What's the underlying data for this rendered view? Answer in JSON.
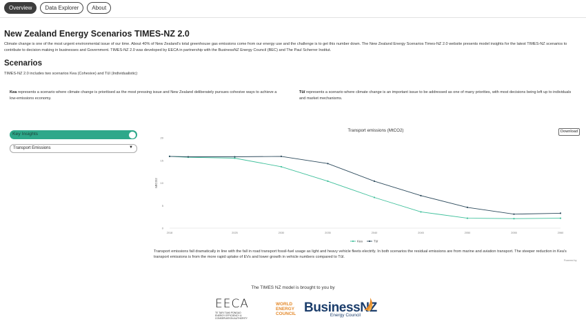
{
  "nav": {
    "tabs": [
      {
        "label": "Overview",
        "active": true
      },
      {
        "label": "Data Explorer",
        "active": false
      },
      {
        "label": "About",
        "active": false
      }
    ]
  },
  "header": {
    "title": "New Zealand Energy Scenarios TIMES-NZ 2.0",
    "intro": "Climate change is one of the most urgent environmental issue of our time. About 40% of New Zealand's total greenhouse gas emissions come from our energy use and the challenge is to get this number down. The New Zealand Energy Scenarios Times-NZ 2.0 website presents model insights for the latest TIMES-NZ scenarios to contribute to decision making in businesses and Government. TIMES-NZ 2.0 was developed by EECA in partnership with the BusinessNZ Energy Council (BEC) and The Paul Scherrer Institut."
  },
  "scenarios": {
    "heading": "Scenarios",
    "intro": "TIMES-NZ 2.0 includes two scenarios Kea (Cohesive) and Tūī (Individualistic):",
    "kea": {
      "name": "Kea",
      "text": " represents a scenario where climate change is prioritised as the most pressing issue and New Zealand deliberately pursues cohesive ways to achieve a low-emissions economy."
    },
    "tui": {
      "name": "Tūī",
      "text": " represents a scenario where climate change is an important issue to be addressed as one of many priorities, with most decisions being left up to individuals and market mechanisms."
    }
  },
  "controls": {
    "toggle_label": "Key Insights",
    "toggle_on": true,
    "select_value": "Transport Emissions"
  },
  "chart_data": {
    "type": "line",
    "title": "Transport emissions (MtCO2)",
    "xlabel": "",
    "ylabel": "MtCO2",
    "x": [
      2018,
      2020,
      2025,
      2030,
      2035,
      2040,
      2045,
      2050,
      2055,
      2060
    ],
    "xticks": [
      "2018",
      "2025",
      "2030",
      "2035",
      "2040",
      "2045",
      "2050",
      "2055",
      "2060"
    ],
    "yticks": [
      "0",
      "5",
      "10",
      "15",
      "20"
    ],
    "ylim": [
      0,
      20
    ],
    "grid": false,
    "legend_position": "bottom",
    "series": [
      {
        "name": "Kea",
        "color": "#3dbf9a",
        "values": [
          15.9,
          15.7,
          15.5,
          13.6,
          10.4,
          6.8,
          3.6,
          2.2,
          2.1,
          2.2
        ]
      },
      {
        "name": "Tūī",
        "color": "#2c4a5c",
        "values": [
          15.9,
          15.8,
          15.8,
          15.9,
          14.3,
          10.4,
          7.2,
          4.6,
          3.1,
          3.3
        ]
      }
    ]
  },
  "chart_ui": {
    "download_label": "Download",
    "caption": "Transport emissions fall dramatically in line with the fall in road transport fossil-fuel usage as light and heavy vehicle fleets electrify. In both scenarios the residual emissions are from marine and aviation transport. The steeper reduction in Kea's transport emissions is from the more rapid uptake of EVs and lower growth in vehicle numbers compared to Tūī.",
    "powered_by": "Powered by"
  },
  "footer": {
    "brought_by": "The TIMES NZ model is brought to you by",
    "eeca_letters": "EECA",
    "eeca_sub": "TE TARI TIAKI PŪNGAO\nENERGY EFFICIENCY & CONSERVATION AUTHORITY",
    "wec": "WORLD ENERGY COUNCIL",
    "bnz_main": "BusinessNZ",
    "bnz_sub": "Energy Council"
  }
}
